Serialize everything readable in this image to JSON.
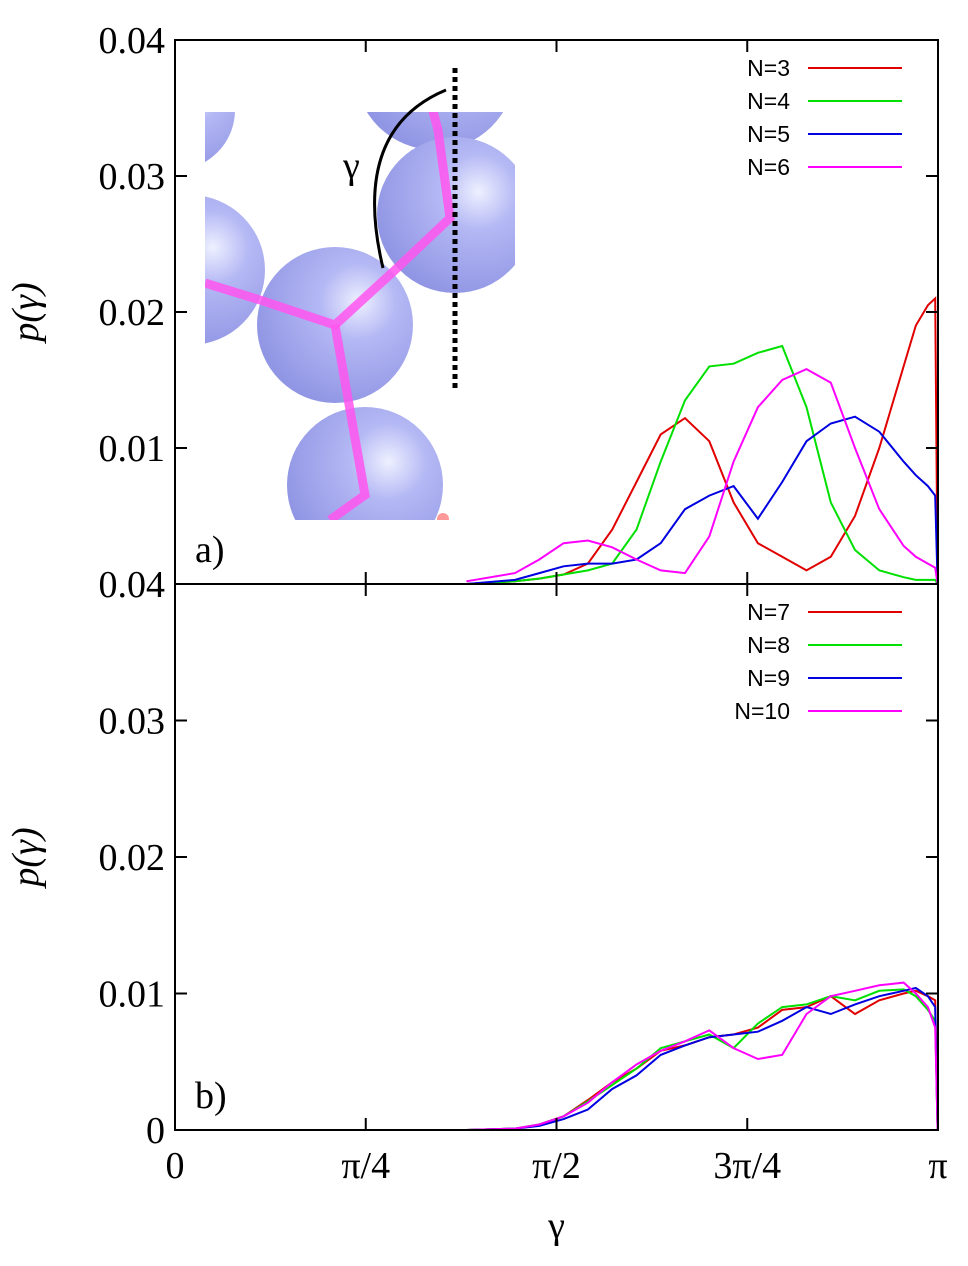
{
  "chart_data": [
    {
      "type": "line",
      "ylabel": "p(γ)",
      "annotation": "a)",
      "inset_label": "γ",
      "legend": "upper right",
      "xlim": [
        0,
        3.141593
      ],
      "ylim": [
        0,
        0.04
      ],
      "yticks": [
        0.01,
        0.02,
        0.03,
        0.04
      ],
      "x": [
        1.2,
        1.4,
        1.5,
        1.6,
        1.7,
        1.8,
        1.9,
        2.0,
        2.1,
        2.2,
        2.3,
        2.4,
        2.5,
        2.6,
        2.7,
        2.8,
        2.9,
        3.0,
        3.05,
        3.1,
        3.13,
        3.14
      ],
      "series": [
        {
          "name": "N=3",
          "color": "#e00000",
          "values": [
            0,
            0.0002,
            0.0004,
            0.0007,
            0.0015,
            0.004,
            0.0075,
            0.011,
            0.0122,
            0.0105,
            0.006,
            0.003,
            0.002,
            0.001,
            0.002,
            0.005,
            0.01,
            0.016,
            0.019,
            0.0205,
            0.021,
            0
          ]
        },
        {
          "name": "N=4",
          "color": "#00e000",
          "values": [
            0,
            0.0002,
            0.0004,
            0.0007,
            0.001,
            0.0015,
            0.004,
            0.009,
            0.0135,
            0.016,
            0.0162,
            0.017,
            0.0175,
            0.013,
            0.006,
            0.0025,
            0.001,
            0.0005,
            0.0003,
            0.0003,
            0.0003,
            0
          ]
        },
        {
          "name": "N=5",
          "color": "#0000e0",
          "values": [
            0,
            0.0003,
            0.0008,
            0.0013,
            0.0015,
            0.0015,
            0.0018,
            0.003,
            0.0055,
            0.0065,
            0.0072,
            0.0048,
            0.0075,
            0.0105,
            0.0118,
            0.0123,
            0.0112,
            0.009,
            0.008,
            0.0072,
            0.0065,
            0
          ]
        },
        {
          "name": "N=6",
          "color": "#ff00ff",
          "values": [
            0.0002,
            0.0008,
            0.0018,
            0.003,
            0.0032,
            0.0027,
            0.0018,
            0.001,
            0.0008,
            0.0035,
            0.009,
            0.013,
            0.015,
            0.0158,
            0.0148,
            0.01,
            0.0055,
            0.0028,
            0.002,
            0.0015,
            0.0012,
            0
          ]
        }
      ]
    },
    {
      "type": "line",
      "ylabel": "p(γ)",
      "xlabel": "γ",
      "annotation": "b)",
      "legend": "upper right",
      "xlim": [
        0,
        3.141593
      ],
      "ylim": [
        0,
        0.04
      ],
      "yticks": [
        0,
        0.01,
        0.02,
        0.03,
        0.04
      ],
      "xticks": [
        0,
        {
          "value": 0.785398,
          "label": "π/4"
        },
        {
          "value": 1.570796,
          "label": "π/2"
        },
        {
          "value": 2.356194,
          "label": "3π/4"
        },
        {
          "value": 3.141593,
          "label": "π"
        }
      ],
      "x": [
        1.2,
        1.4,
        1.5,
        1.6,
        1.7,
        1.8,
        1.9,
        2.0,
        2.1,
        2.2,
        2.3,
        2.4,
        2.5,
        2.6,
        2.7,
        2.8,
        2.9,
        3.0,
        3.05,
        3.1,
        3.13,
        3.14
      ],
      "series": [
        {
          "name": "N=7",
          "color": "#e00000",
          "values": [
            0,
            0.0001,
            0.0004,
            0.001,
            0.0022,
            0.0035,
            0.0045,
            0.0058,
            0.0062,
            0.0068,
            0.007,
            0.0075,
            0.0088,
            0.009,
            0.0098,
            0.0085,
            0.0095,
            0.01,
            0.0102,
            0.0098,
            0.0095,
            0
          ]
        },
        {
          "name": "N=8",
          "color": "#00e000",
          "values": [
            0,
            0.0001,
            0.0004,
            0.001,
            0.0021,
            0.0033,
            0.0045,
            0.006,
            0.0065,
            0.007,
            0.006,
            0.0078,
            0.009,
            0.0092,
            0.0098,
            0.0095,
            0.0102,
            0.0103,
            0.0098,
            0.0088,
            0.008,
            0
          ]
        },
        {
          "name": "N=9",
          "color": "#0000e0",
          "values": [
            0,
            0.0001,
            0.0003,
            0.0008,
            0.0015,
            0.003,
            0.004,
            0.0055,
            0.0062,
            0.0068,
            0.007,
            0.0072,
            0.008,
            0.009,
            0.0085,
            0.0092,
            0.0098,
            0.0102,
            0.0104,
            0.0098,
            0.009,
            0
          ]
        },
        {
          "name": "N=10",
          "color": "#ff00ff",
          "values": [
            0,
            0.0001,
            0.0004,
            0.001,
            0.002,
            0.0035,
            0.0048,
            0.0058,
            0.0065,
            0.0073,
            0.006,
            0.0052,
            0.0055,
            0.0085,
            0.0098,
            0.0102,
            0.0106,
            0.0108,
            0.01,
            0.009,
            0.0075,
            0
          ]
        }
      ]
    }
  ]
}
